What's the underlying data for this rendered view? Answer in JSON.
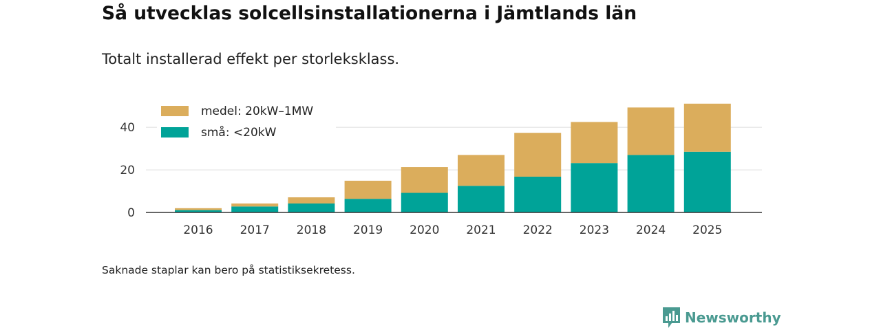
{
  "title": "Så utvecklas solcellsinstallationerna i Jämtlands län",
  "subtitle": "Totalt installerad effekt per storleksklass.",
  "footnote": "Saknade staplar kan bero på statistiksekretess.",
  "brand": {
    "name": "Newsworthy",
    "color": "#4a9a91"
  },
  "chart_data": {
    "type": "bar",
    "stacked": true,
    "categories": [
      "2016",
      "2017",
      "2018",
      "2019",
      "2020",
      "2021",
      "2022",
      "2023",
      "2024",
      "2025"
    ],
    "series": [
      {
        "name": "små: <20kW",
        "color": "#00a398",
        "values": [
          1.1,
          2.8,
          4.2,
          6.4,
          9.2,
          12.5,
          16.8,
          23.2,
          27.0,
          28.5
        ]
      },
      {
        "name": "medel: 20kW–1MW",
        "color": "#dbad5c",
        "values": [
          0.9,
          1.4,
          2.9,
          8.5,
          12.1,
          14.5,
          20.6,
          19.3,
          22.3,
          22.6
        ]
      }
    ],
    "title": "",
    "xlabel": "",
    "ylabel": "",
    "ylim": [
      0,
      52
    ],
    "yticks": [
      0,
      20,
      40
    ],
    "grid": true,
    "legend": "top-left"
  }
}
